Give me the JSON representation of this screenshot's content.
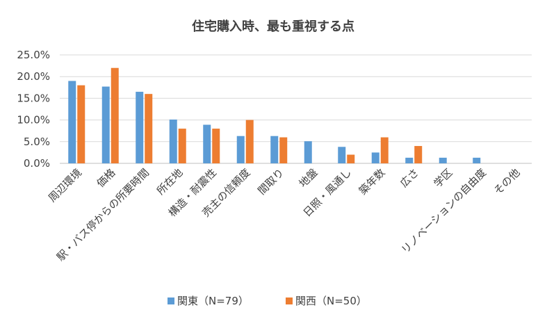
{
  "chart_data": {
    "type": "bar",
    "title": "住宅購入時、最も重視する点",
    "categories": [
      "周辺環境",
      "価格",
      "駅・バス停からの所要時間",
      "所在地",
      "構造・耐震性",
      "売主の信頼度",
      "間取り",
      "地盤",
      "日照・風通し",
      "築年数",
      "広さ",
      "学区",
      "リノベーションの自由度",
      "その他"
    ],
    "series": [
      {
        "name": "関東（N=79）",
        "color": "#5b9bd5",
        "values": [
          19.0,
          17.7,
          16.5,
          10.1,
          8.9,
          6.3,
          6.3,
          5.1,
          3.8,
          2.5,
          1.3,
          1.3,
          1.3,
          0
        ]
      },
      {
        "name": "関西（N=50）",
        "color": "#ed7d31",
        "values": [
          18.0,
          22.0,
          16.0,
          8.0,
          8.0,
          10.0,
          6.0,
          0,
          2.0,
          6.0,
          4.0,
          0,
          0,
          0
        ]
      }
    ],
    "yticks": [
      "0.0%",
      "5.0%",
      "10.0%",
      "15.0%",
      "20.0%",
      "25.0%"
    ],
    "ylim": [
      0,
      25
    ],
    "grid": true,
    "legend_position": "bottom"
  }
}
